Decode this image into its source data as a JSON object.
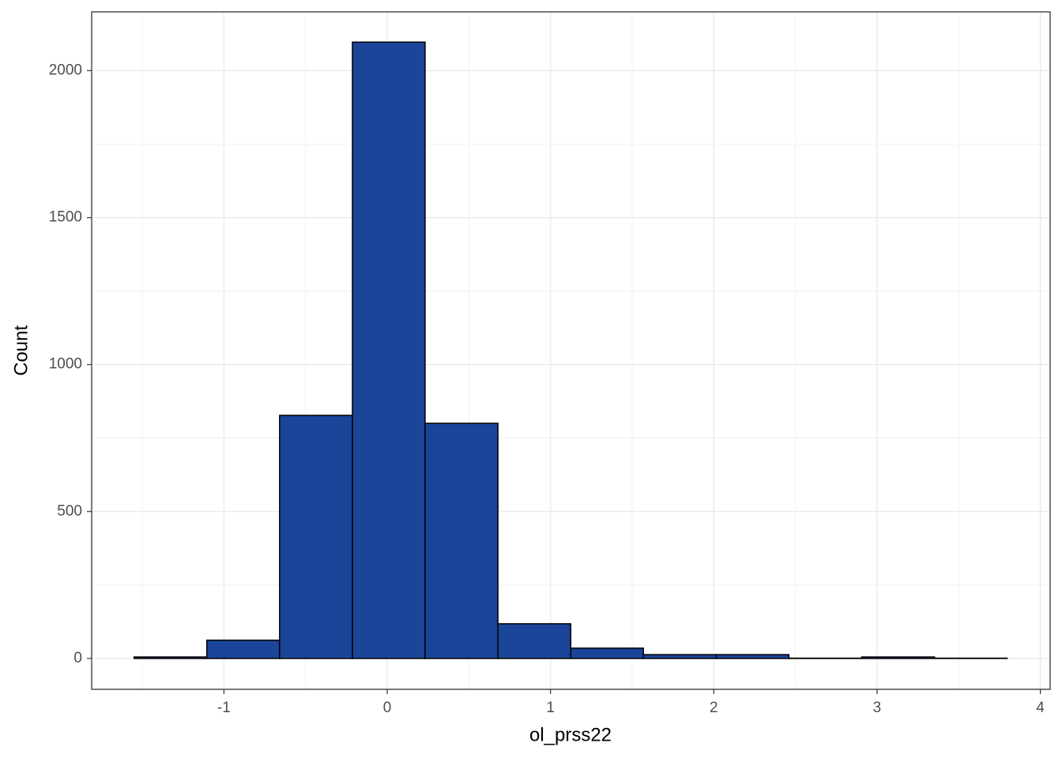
{
  "chart_data": {
    "type": "histogram",
    "x_label": "ol_prss22",
    "y_label": "Count",
    "bins": [
      -1.55,
      -1.105,
      -0.659,
      -0.213,
      0.232,
      0.678,
      1.124,
      1.569,
      2.015,
      2.46,
      2.906,
      3.352,
      3.797
    ],
    "values": [
      5,
      62,
      827,
      2097,
      800,
      118,
      35,
      13,
      13,
      1,
      5,
      1
    ],
    "color": "#1a4599",
    "edge_color": "#000000",
    "xlim": [
      -1.81,
      4.06
    ],
    "ylim": [
      -105,
      2200
    ],
    "xticks": [
      -1,
      0,
      1,
      2,
      3,
      4
    ],
    "yticks": [
      0,
      500,
      1000,
      1500,
      2000
    ],
    "grid": true,
    "minor_grid": true
  }
}
